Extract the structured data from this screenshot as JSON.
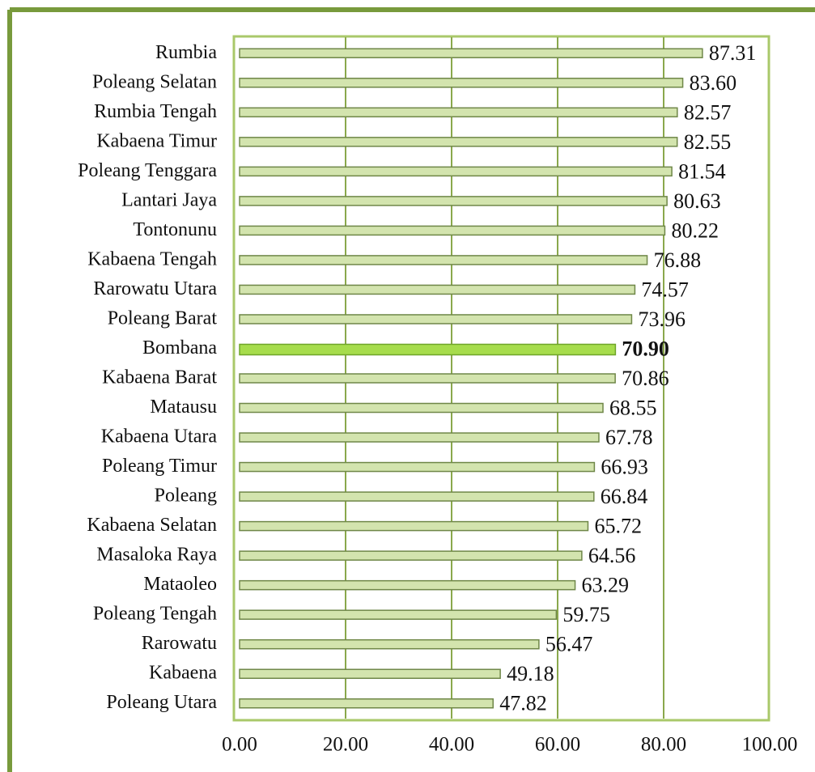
{
  "chart_data": {
    "type": "barh",
    "categories": [
      "Rumbia",
      "Poleang Selatan",
      "Rumbia Tengah",
      "Kabaena Timur",
      "Poleang Tenggara",
      "Lantari Jaya",
      "Tontonunu",
      "Kabaena Tengah",
      "Rarowatu Utara",
      "Poleang Barat",
      "Bombana",
      "Kabaena Barat",
      "Matausu",
      "Kabaena Utara",
      "Poleang Timur",
      "Poleang",
      "Kabaena Selatan",
      "Masaloka Raya",
      "Mataoleo",
      "Poleang Tengah",
      "Rarowatu",
      "Kabaena",
      "Poleang Utara"
    ],
    "values": [
      87.31,
      83.6,
      82.57,
      82.55,
      81.54,
      80.63,
      80.22,
      76.88,
      74.57,
      73.96,
      70.9,
      70.86,
      68.55,
      67.78,
      66.93,
      66.84,
      65.72,
      64.56,
      63.29,
      59.75,
      56.47,
      49.18,
      47.82
    ],
    "value_labels": [
      "87.31",
      "83.60",
      "82.57",
      "82.55",
      "81.54",
      "80.63",
      "80.22",
      "76.88",
      "74.57",
      "73.96",
      "70.90",
      "70.86",
      "68.55",
      "67.78",
      "66.93",
      "66.84",
      "65.72",
      "64.56",
      "63.29",
      "59.75",
      "56.47",
      "49.18",
      "47.82"
    ],
    "color": "#d3e4ae",
    "highlight": "Bombana",
    "highlight_color": "#a6dc4c",
    "xlim": [
      0,
      100
    ],
    "xticks": [
      {
        "value": 0,
        "label": "0.00"
      },
      {
        "value": 20,
        "label": "20.00"
      },
      {
        "value": 40,
        "label": "40.00"
      },
      {
        "value": 60,
        "label": "60.00"
      },
      {
        "value": 80,
        "label": "80.00"
      },
      {
        "value": 100,
        "label": "100.00"
      }
    ],
    "grid": true
  }
}
